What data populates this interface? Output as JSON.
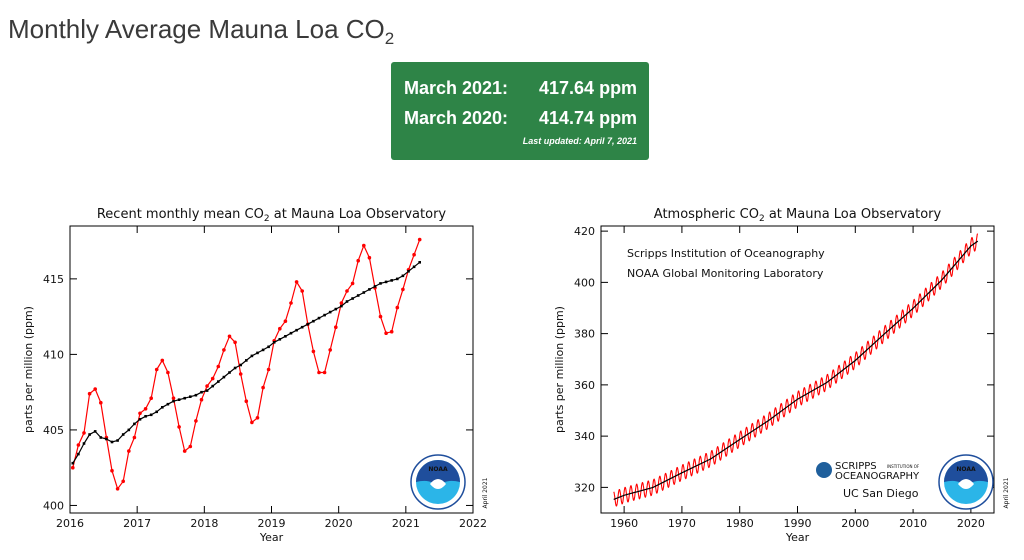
{
  "page": {
    "title": "Monthly Average Mauna Loa CO",
    "title_sub": "2"
  },
  "summary": {
    "row1_label": "March 2021:",
    "row1_value": "417.64 ppm",
    "row2_label": "March 2020:",
    "row2_value": "414.74 ppm",
    "updated": "Last updated: April 7, 2021",
    "background": "#2e8447"
  },
  "colors": {
    "monthly": "#ff0000",
    "trend": "#000000",
    "noaa_blue": "#1f4e9c",
    "noaa_cyan": "#2bb5e8"
  },
  "chart_data": [
    {
      "type": "line",
      "title": "Recent monthly mean CO",
      "title_sub": "2",
      "title_suffix": " at Mauna Loa Observatory",
      "xlabel": "Year",
      "ylabel": "parts per million (ppm)",
      "xlim": [
        2016,
        2022
      ],
      "ylim": [
        399.5,
        418.5
      ],
      "xticks": [
        2016,
        2017,
        2018,
        2019,
        2020,
        2021,
        2022
      ],
      "yticks": [
        400,
        405,
        410,
        415
      ],
      "side_text": "April 2021",
      "series": [
        {
          "role": "monthly",
          "x_start": 2016.042,
          "x_step": 0.0833,
          "values": [
            402.5,
            404.0,
            404.8,
            407.4,
            407.7,
            406.8,
            404.5,
            402.3,
            401.1,
            401.6,
            403.6,
            404.5,
            406.1,
            406.4,
            407.1,
            409.0,
            409.6,
            408.8,
            407.1,
            405.2,
            403.6,
            403.9,
            405.6,
            407.0,
            407.9,
            408.4,
            409.2,
            410.3,
            411.2,
            410.8,
            408.7,
            406.9,
            405.5,
            405.8,
            407.8,
            409.0,
            410.9,
            411.7,
            412.2,
            413.4,
            414.8,
            414.2,
            412.0,
            410.2,
            408.8,
            408.8,
            410.3,
            411.8,
            413.4,
            414.2,
            414.7,
            416.2,
            417.2,
            416.4,
            414.4,
            412.5,
            411.4,
            411.5,
            413.1,
            414.3,
            415.6,
            416.6,
            417.6
          ]
        },
        {
          "role": "trend",
          "x_start": 2016.042,
          "x_step": 0.0833,
          "values": [
            402.8,
            403.4,
            404.1,
            404.7,
            404.9,
            404.5,
            404.4,
            404.2,
            404.3,
            404.7,
            405.0,
            405.4,
            405.7,
            405.9,
            406.0,
            406.2,
            406.5,
            406.7,
            406.9,
            407.0,
            407.1,
            407.2,
            407.3,
            407.5,
            407.6,
            407.9,
            408.2,
            408.5,
            408.8,
            409.1,
            409.3,
            409.6,
            409.9,
            410.1,
            410.3,
            410.5,
            410.8,
            411.0,
            411.2,
            411.4,
            411.6,
            411.8,
            412.0,
            412.2,
            412.4,
            412.6,
            412.8,
            413.0,
            413.2,
            413.5,
            413.7,
            413.9,
            414.1,
            414.3,
            414.5,
            414.7,
            414.8,
            414.9,
            415.0,
            415.2,
            415.5,
            415.8,
            416.1
          ]
        }
      ]
    },
    {
      "type": "line",
      "title": "Atmospheric CO",
      "title_sub": "2",
      "title_suffix": " at Mauna Loa Observatory",
      "xlabel": "Year",
      "ylabel": "parts per million (ppm)",
      "xlim": [
        1956,
        2024
      ],
      "ylim": [
        310,
        422
      ],
      "xticks": [
        1960,
        1970,
        1980,
        1990,
        2000,
        2010,
        2020
      ],
      "yticks": [
        320,
        340,
        360,
        380,
        400,
        420
      ],
      "side_text": "April 2021",
      "annotations": [
        "Scripps Institution of Oceanography",
        "NOAA Global Monitoring Laboratory"
      ],
      "logo_text": {
        "scripps": "SCRIPPS",
        "inst_of": "INSTITUTION OF",
        "oceanography": "OCEANOGRAPHY",
        "ucsd": "UC San Diego",
        "noaa": "NOAA"
      },
      "trend_points": [
        [
          1958.2,
          315.3
        ],
        [
          1960,
          316.9
        ],
        [
          1965,
          320.0
        ],
        [
          1970,
          325.7
        ],
        [
          1975,
          331.1
        ],
        [
          1980,
          338.7
        ],
        [
          1985,
          346.1
        ],
        [
          1990,
          354.4
        ],
        [
          1995,
          360.8
        ],
        [
          2000,
          369.5
        ],
        [
          2005,
          379.8
        ],
        [
          2010,
          389.9
        ],
        [
          2015,
          401.0
        ],
        [
          2020,
          414.2
        ],
        [
          2021.2,
          416.1
        ]
      ],
      "seasonal_amplitude_ppm": 3
    }
  ]
}
